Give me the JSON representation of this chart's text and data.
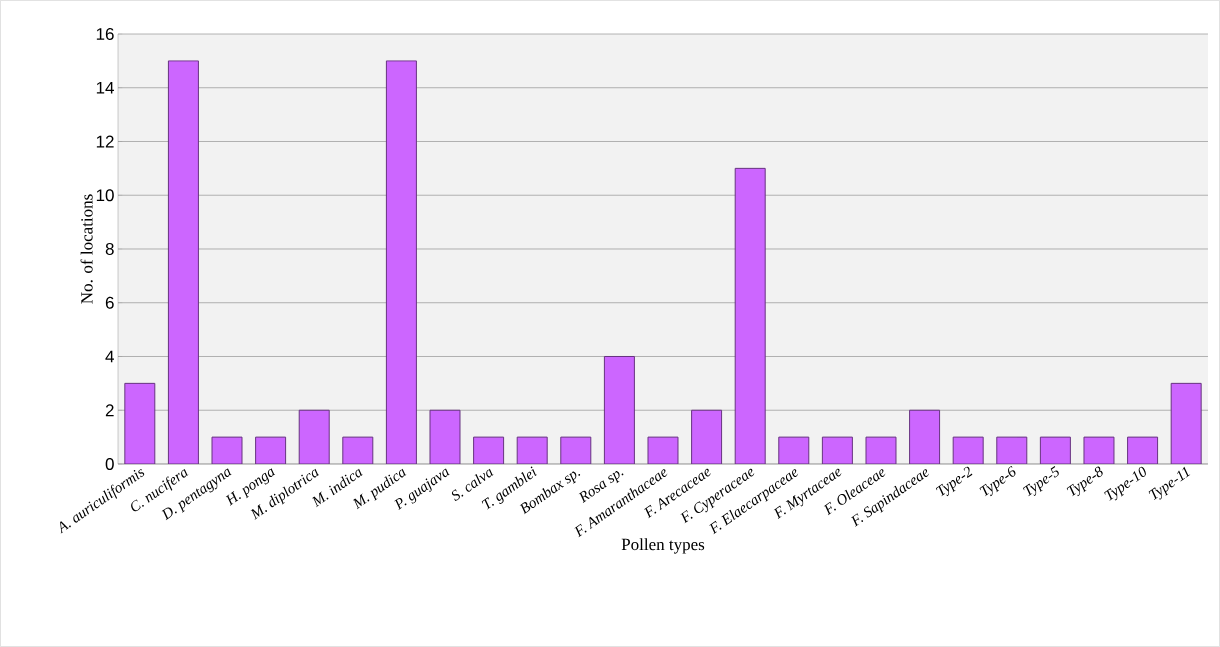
{
  "chart_data": {
    "type": "bar",
    "xlabel": "Pollen types",
    "ylabel": "No. of locations",
    "categories": [
      "A. auriculiformis",
      "C. nucifera",
      "D. pentagyna",
      "H. ponga",
      "M. diplotrica",
      "M. indica",
      "M. pudica",
      "P. guajava",
      "S. calva",
      "T. gamblei",
      "Bombax sp.",
      "Rosa sp.",
      "F. Amaranthaceae",
      "F. Arecaceae",
      "F. Cyperaceae",
      "F. Elaecarpaceae",
      "F. Myrtaceae",
      "F. Oleaceae",
      "F. Sapindaceae",
      "Type-2",
      "Type-6",
      "Type-5",
      "Type-8",
      "Type-10",
      "Type-11"
    ],
    "values": [
      3,
      15,
      1,
      1,
      2,
      1,
      15,
      2,
      1,
      1,
      1,
      4,
      1,
      2,
      11,
      1,
      1,
      1,
      2,
      1,
      1,
      1,
      1,
      1,
      3
    ],
    "color": "#cc66ff",
    "ylim": [
      0,
      16
    ],
    "yticks": [
      0,
      2,
      4,
      6,
      8,
      10,
      12,
      14,
      16
    ],
    "grid": "y"
  }
}
